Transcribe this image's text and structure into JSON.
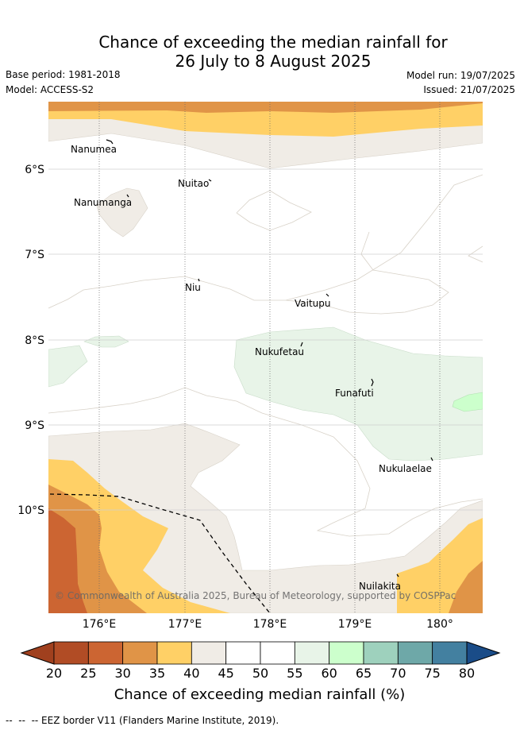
{
  "title": {
    "line1": "Chance of exceeding the median rainfall for",
    "line2": "26 July to 8 August 2025"
  },
  "meta": {
    "base_period": "Base period: 1981-2018",
    "model": "Model: ACCESS-S2",
    "model_run": "Model run: 19/07/2025",
    "issued": "Issued: 21/07/2025"
  },
  "map": {
    "lon_ticks": [
      "176°E",
      "177°E",
      "178°E",
      "179°E",
      "180°"
    ],
    "lat_ticks": [
      "6°S",
      "7°S",
      "8°S",
      "9°S",
      "10°S"
    ],
    "places": [
      "Nanumea",
      "Nuitao",
      "Nanumanga",
      "Niu",
      "Vaitupu",
      "Nukufetau",
      "Funafuti",
      "Nukulaelae",
      "Nuilakita"
    ],
    "copyright": "© Commonwealth of Australia 2025, Bureau of Meteorology, supported by COSPPac"
  },
  "colorbar": {
    "ticks": [
      "20",
      "25",
      "30",
      "35",
      "40",
      "45",
      "50",
      "55",
      "60",
      "65",
      "70",
      "75",
      "80"
    ],
    "label": "Chance of exceeding median rainfall (%)",
    "colors": [
      "#a0401e",
      "#b14c25",
      "#cc6532",
      "#e09447",
      "#ffd066",
      "#f0ece6",
      "#ffffff",
      "#ffffff",
      "#e8f4e8",
      "#ccffcc",
      "#9ed1bd",
      "#6ea8a8",
      "#4380a0",
      "#1a4c88"
    ]
  },
  "footnote": "--  --  -- EEZ border V11 (Flanders Marine Institute, 2019)."
}
